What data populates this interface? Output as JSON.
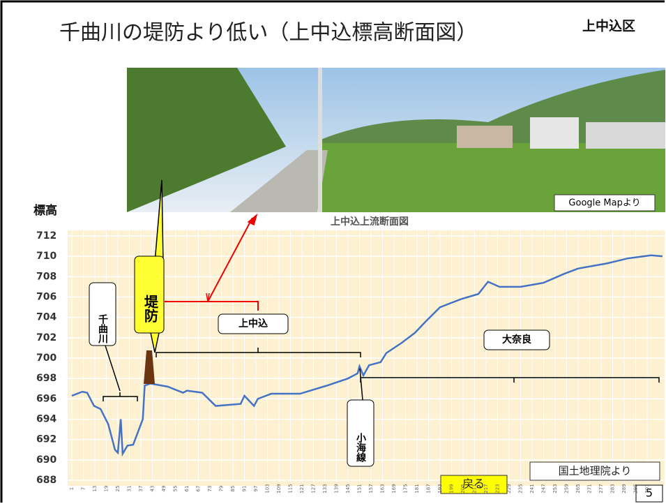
{
  "header": {
    "title": "千曲川の堤防より低い（上中込標高断面図）",
    "district": "上中込区",
    "page": "5"
  },
  "photo": {
    "credit": "Google Mapより"
  },
  "source": "国土地理院より",
  "back_button": "戻る",
  "chart_data": {
    "type": "line",
    "title": "上中込上流断面図",
    "y_label": "標高",
    "x": [
      1,
      6.5,
      9,
      12.6,
      16,
      20,
      23.5,
      25,
      26.5,
      27.5,
      30,
      33,
      35,
      38,
      39,
      42,
      51,
      59,
      61,
      69,
      76,
      89,
      91,
      96,
      98,
      105,
      120,
      134,
      145,
      150,
      151,
      153,
      156,
      162,
      165,
      173,
      180,
      185,
      193,
      204,
      213,
      218,
      224,
      235,
      247,
      258,
      265,
      280,
      291,
      303,
      309
    ],
    "series": [
      {
        "name": "標高",
        "color": "#4472c4",
        "values": [
          696.3,
          696.7,
          696.6,
          695.3,
          695,
          693.5,
          691,
          690.7,
          694,
          690.6,
          691.4,
          691.5,
          692.5,
          694,
          697.3,
          697.5,
          697.2,
          696.6,
          696.8,
          696.6,
          695.3,
          695.5,
          696.3,
          695.3,
          696,
          696.5,
          696.5,
          697.3,
          698,
          698.5,
          699.2,
          698.3,
          699.3,
          699.6,
          700.5,
          701.5,
          702.5,
          703.5,
          705,
          705.8,
          706.3,
          707.5,
          707,
          707,
          707.4,
          708.3,
          708.8,
          709.3,
          709.8,
          710.1,
          710
        ]
      }
    ],
    "xlim": [
      1,
      309
    ],
    "ylim": [
      688,
      712
    ],
    "xticks": [
      1,
      7,
      13,
      19,
      25,
      31,
      37,
      43,
      49,
      55,
      61,
      67,
      73,
      79,
      85,
      91,
      97,
      103,
      109,
      115,
      121,
      127,
      133,
      139,
      145,
      151,
      157,
      163,
      169,
      175,
      181,
      187,
      193,
      199,
      205,
      211,
      217,
      223,
      229,
      235,
      241,
      247,
      253,
      259,
      265,
      271,
      277,
      283,
      289,
      295,
      301
    ],
    "yticks": [
      688,
      690,
      692,
      694,
      696,
      698,
      700,
      702,
      704,
      706,
      708,
      710,
      712
    ],
    "grid": true,
    "annotations": [
      "堤防",
      "千曲川",
      "上中込",
      "大奈良",
      "小海線"
    ]
  }
}
